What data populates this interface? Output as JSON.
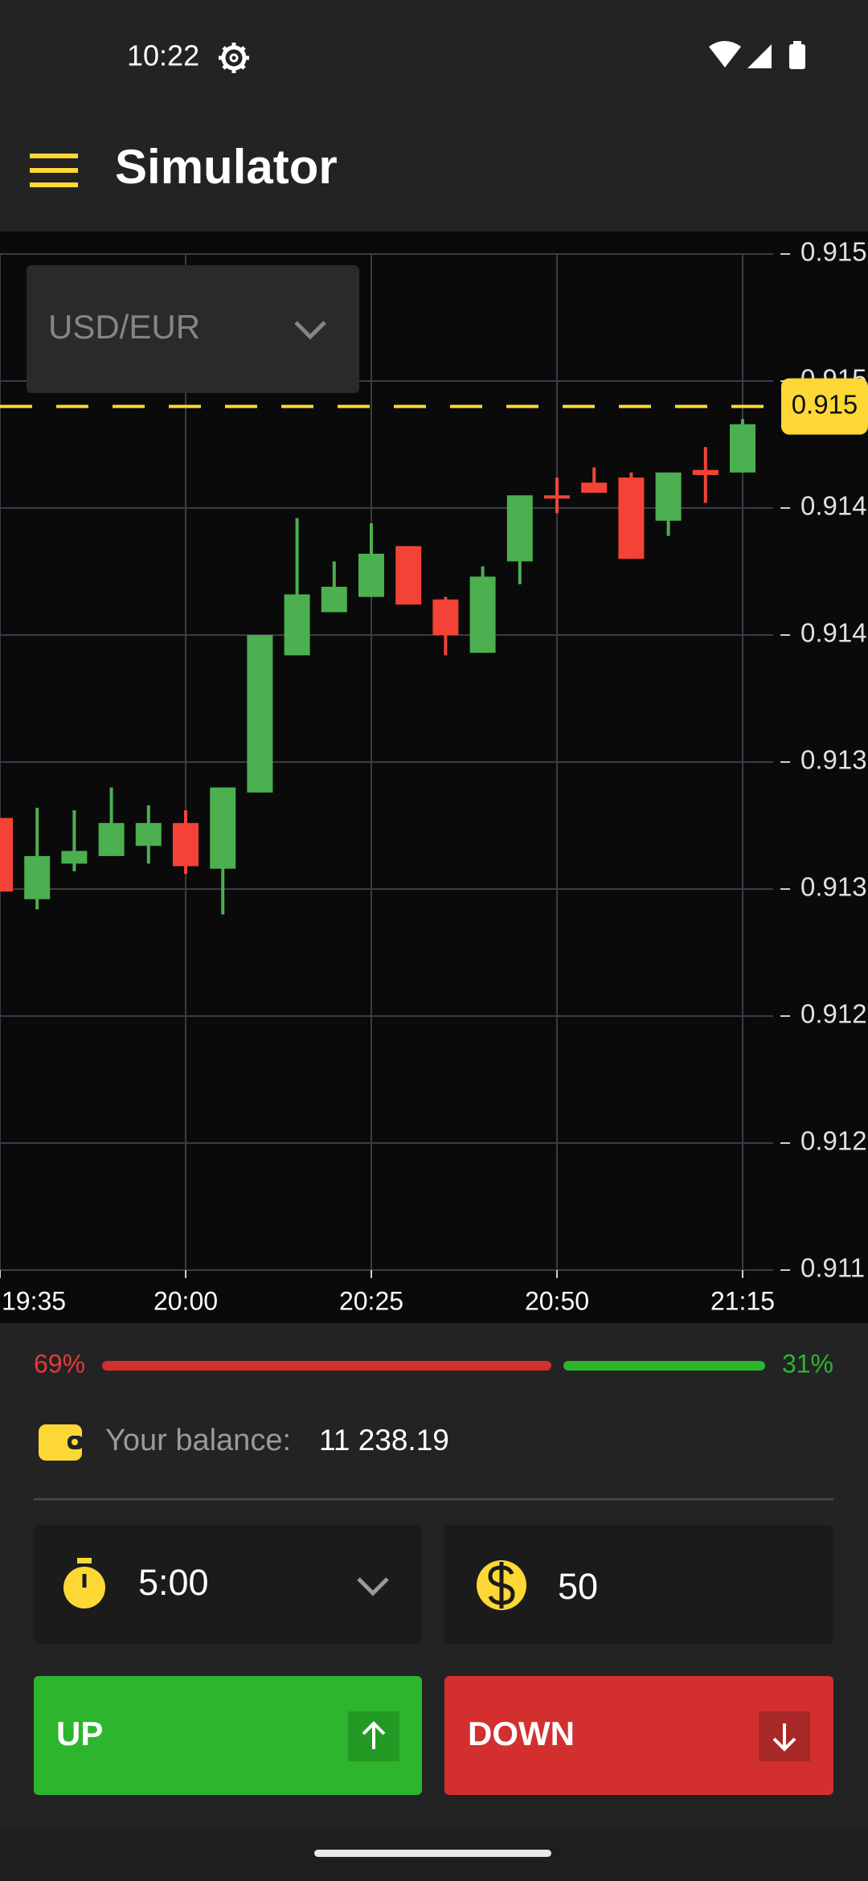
{
  "status_bar": {
    "time": "10:22"
  },
  "app_bar": {
    "title": "Simulator"
  },
  "symbol": "USD/EUR",
  "chart_data": {
    "type": "candlestick",
    "x": [
      "19:35",
      "19:40",
      "19:45",
      "19:50",
      "19:55",
      "20:00",
      "20:05",
      "20:10",
      "20:15",
      "20:20",
      "20:25",
      "20:30",
      "20:35",
      "20:40",
      "20:45",
      "20:50",
      "20:55",
      "21:00",
      "21:05",
      "21:10",
      "21:15"
    ],
    "open": [
      0.91328,
      0.91296,
      0.9131,
      0.91313,
      0.91317,
      0.91326,
      0.91308,
      0.91338,
      0.91392,
      0.91409,
      0.91415,
      0.91435,
      0.91414,
      0.91393,
      0.91429,
      0.91455,
      0.9146,
      0.91462,
      0.91445,
      0.91465,
      0.91464
    ],
    "high": [
      0.91328,
      0.91332,
      0.91331,
      0.9134,
      0.91333,
      0.91331,
      0.9134,
      0.914,
      0.91446,
      0.91429,
      0.91444,
      0.91435,
      0.91415,
      0.91427,
      0.91455,
      0.91462,
      0.91466,
      0.91464,
      0.91464,
      0.91474,
      0.91485
    ],
    "low": [
      0.91299,
      0.91292,
      0.91307,
      0.91313,
      0.9131,
      0.91306,
      0.9129,
      0.91338,
      0.91392,
      0.91409,
      0.91415,
      0.91412,
      0.91392,
      0.91393,
      0.9142,
      0.91448,
      0.91456,
      0.9143,
      0.91439,
      0.91452,
      0.91464
    ],
    "close": [
      0.91299,
      0.91313,
      0.91315,
      0.91326,
      0.91326,
      0.91309,
      0.9134,
      0.914,
      0.91416,
      0.91419,
      0.91432,
      0.91412,
      0.914,
      0.91423,
      0.91455,
      0.91454,
      0.91456,
      0.9143,
      0.91464,
      0.91463,
      0.91483
    ],
    "ylim": [
      0.9115,
      0.9155
    ],
    "yticks": [
      {
        "value": 0.9155,
        "label": "0.915"
      },
      0.915,
      {
        "value": 0.9145,
        "label": "0.914"
      },
      0.914,
      {
        "value": 0.9135,
        "label": "0.913"
      },
      0.913,
      {
        "value": 0.9125,
        "label": "0.912"
      },
      0.912,
      {
        "value": 0.9115,
        "label": "0.911"
      }
    ],
    "xticks": [
      "19:35",
      "20:00",
      "20:25",
      "20:50",
      "21:15"
    ],
    "grid": true,
    "up_color": "#4caf50",
    "down_color": "#f44336",
    "current_price": {
      "value": 0.9149,
      "label": "0.915"
    },
    "current_price_color": "#fdd835"
  },
  "sentiment": {
    "down": "69%",
    "up": "31%"
  },
  "balance": {
    "label": "Your balance:",
    "value": "11 238.19"
  },
  "trade": {
    "duration": "5:00",
    "amount": "50",
    "up": "UP",
    "down": "DOWN"
  }
}
